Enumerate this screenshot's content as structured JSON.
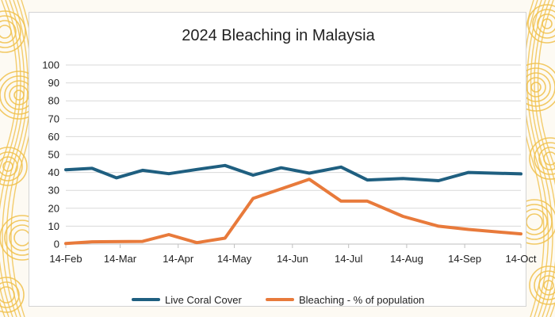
{
  "colors": {
    "live_coral": "#1f5f80",
    "bleaching": "#e87a3b",
    "decoration": "#f0c04a"
  },
  "chart_data": {
    "type": "line",
    "title": "2024 Bleaching in Malaysia",
    "xlabel": "",
    "ylabel": "",
    "ylim": [
      0,
      100
    ],
    "y_ticks": [
      "0",
      "10",
      "20",
      "30",
      "40",
      "50",
      "60",
      "70",
      "80",
      "90",
      "100"
    ],
    "x_range": [
      "2024-02-14",
      "2024-10-14"
    ],
    "x_ticks": [
      {
        "date": "2024-02-14",
        "label": "14-Feb"
      },
      {
        "date": "2024-03-14",
        "label": "14-Mar"
      },
      {
        "date": "2024-04-14",
        "label": "14-Apr"
      },
      {
        "date": "2024-05-14",
        "label": "14-May"
      },
      {
        "date": "2024-06-14",
        "label": "14-Jun"
      },
      {
        "date": "2024-07-14",
        "label": "14-Jul"
      },
      {
        "date": "2024-08-14",
        "label": "14-Aug"
      },
      {
        "date": "2024-09-14",
        "label": "14-Sep"
      },
      {
        "date": "2024-10-14",
        "label": "14-Oct"
      }
    ],
    "grid": true,
    "legend_position": "bottom",
    "series": [
      {
        "name": "Live Coral Cover",
        "color": "#1f5f80",
        "points": [
          {
            "x": "2024-02-14",
            "y": 41.5
          },
          {
            "x": "2024-02-28",
            "y": 42.3
          },
          {
            "x": "2024-03-12",
            "y": 37.0
          },
          {
            "x": "2024-03-26",
            "y": 41.2
          },
          {
            "x": "2024-04-09",
            "y": 39.3
          },
          {
            "x": "2024-04-24",
            "y": 41.7
          },
          {
            "x": "2024-05-09",
            "y": 43.9
          },
          {
            "x": "2024-05-24",
            "y": 38.5
          },
          {
            "x": "2024-06-08",
            "y": 42.6
          },
          {
            "x": "2024-06-23",
            "y": 39.6
          },
          {
            "x": "2024-07-10",
            "y": 43.0
          },
          {
            "x": "2024-07-24",
            "y": 35.8
          },
          {
            "x": "2024-08-12",
            "y": 36.6
          },
          {
            "x": "2024-08-31",
            "y": 35.4
          },
          {
            "x": "2024-09-16",
            "y": 40.0
          },
          {
            "x": "2024-10-14",
            "y": 39.2
          }
        ]
      },
      {
        "name": "Bleaching - % of population",
        "color": "#e87a3b",
        "points": [
          {
            "x": "2024-02-14",
            "y": 0.3
          },
          {
            "x": "2024-02-28",
            "y": 1.3
          },
          {
            "x": "2024-03-26",
            "y": 1.5
          },
          {
            "x": "2024-04-09",
            "y": 5.3
          },
          {
            "x": "2024-04-24",
            "y": 0.8
          },
          {
            "x": "2024-05-09",
            "y": 3.3
          },
          {
            "x": "2024-05-24",
            "y": 25.5
          },
          {
            "x": "2024-06-23",
            "y": 36.2
          },
          {
            "x": "2024-07-10",
            "y": 24.0
          },
          {
            "x": "2024-07-24",
            "y": 24.0
          },
          {
            "x": "2024-08-12",
            "y": 15.5
          },
          {
            "x": "2024-08-31",
            "y": 10.0
          },
          {
            "x": "2024-09-16",
            "y": 8.2
          },
          {
            "x": "2024-10-14",
            "y": 5.7
          }
        ]
      }
    ]
  }
}
